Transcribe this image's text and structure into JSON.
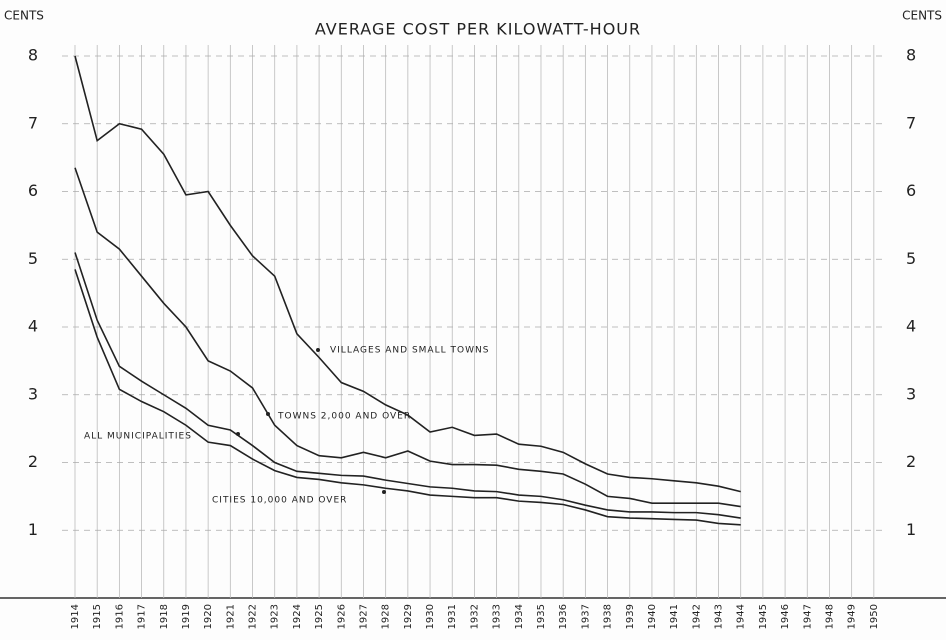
{
  "chart_data": {
    "type": "line",
    "title": "AVERAGE COST PER KILOWATT-HOUR",
    "y_label": "CENTS",
    "categories": [
      "1914",
      "1915",
      "1916",
      "1917",
      "1918",
      "1919",
      "1920",
      "1921",
      "1922",
      "1923",
      "1924",
      "1925",
      "1926",
      "1927",
      "1928",
      "1929",
      "1930",
      "1931",
      "1932",
      "1933",
      "1934",
      "1935",
      "1936",
      "1937",
      "1938",
      "1939",
      "1940",
      "1941",
      "1942",
      "1943",
      "1944",
      "1945",
      "1946",
      "1947",
      "1948",
      "1949",
      "1950"
    ],
    "ylim": [
      0,
      8
    ],
    "yticks": [
      1,
      2,
      3,
      4,
      5,
      6,
      7,
      8
    ],
    "grid": true,
    "series": [
      {
        "name": "VILLAGES AND SMALL TOWNS",
        "color": "#222222",
        "values": [
          8.0,
          6.75,
          7.0,
          6.92,
          6.55,
          5.95,
          6.0,
          5.5,
          5.05,
          4.75,
          3.9,
          3.55,
          3.18,
          3.05,
          2.85,
          2.7,
          2.45,
          2.52,
          2.4,
          2.42,
          2.27,
          2.24,
          2.15,
          1.98,
          1.83,
          1.78,
          1.76,
          1.73,
          1.7,
          1.65,
          1.57,
          null,
          null,
          null,
          null,
          null,
          null
        ]
      },
      {
        "name": "TOWNS 2,000 AND OVER",
        "color": "#222222",
        "values": [
          6.35,
          5.4,
          5.15,
          4.75,
          4.35,
          4.0,
          3.5,
          3.35,
          3.1,
          2.55,
          2.25,
          2.1,
          2.07,
          2.15,
          2.07,
          2.17,
          2.02,
          1.97,
          1.97,
          1.96,
          1.9,
          1.87,
          1.83,
          1.68,
          1.5,
          1.47,
          1.4,
          1.4,
          1.4,
          1.4,
          1.35,
          null,
          null,
          null,
          null,
          null,
          null
        ]
      },
      {
        "name": "ALL MUNICIPALITIES",
        "color": "#222222",
        "values": [
          5.1,
          4.1,
          3.42,
          3.2,
          3.0,
          2.8,
          2.55,
          2.48,
          2.25,
          2.0,
          1.87,
          1.84,
          1.81,
          1.8,
          1.74,
          1.69,
          1.64,
          1.62,
          1.58,
          1.57,
          1.52,
          1.5,
          1.45,
          1.37,
          1.3,
          1.27,
          1.27,
          1.26,
          1.26,
          1.23,
          1.18,
          null,
          null,
          null,
          null,
          null,
          null
        ]
      },
      {
        "name": "CITIES 10,000 AND OVER",
        "color": "#222222",
        "values": [
          4.85,
          3.85,
          3.08,
          2.9,
          2.75,
          2.55,
          2.3,
          2.25,
          2.05,
          1.88,
          1.78,
          1.75,
          1.7,
          1.67,
          1.62,
          1.58,
          1.52,
          1.5,
          1.48,
          1.48,
          1.43,
          1.41,
          1.38,
          1.3,
          1.2,
          1.18,
          1.17,
          1.16,
          1.15,
          1.1,
          1.08,
          null,
          null,
          null,
          null,
          null,
          null
        ]
      }
    ]
  }
}
